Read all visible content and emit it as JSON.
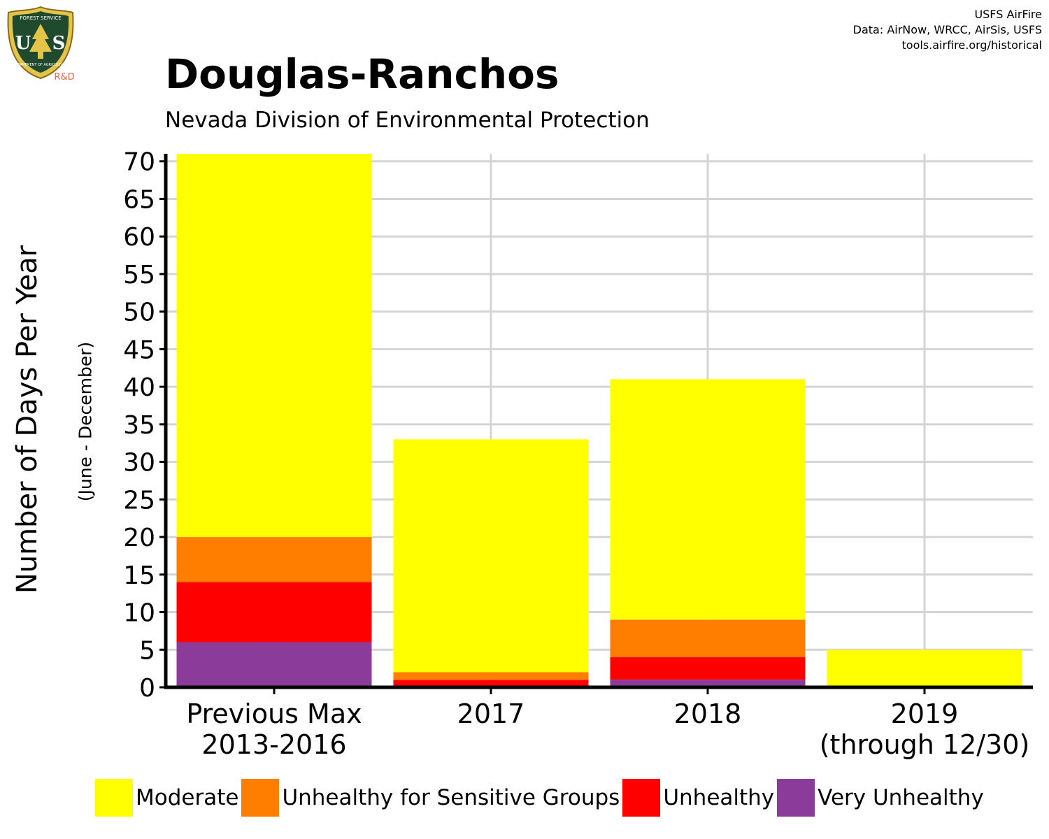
{
  "header": {
    "title": "Douglas-Ranchos",
    "subtitle": "Nevada Division of Environmental Protection",
    "credits": [
      "USFS AirFire",
      "Data: AirNow, WRCC, AirSis, USFS",
      "tools.airfire.org/historical"
    ]
  },
  "logo": {
    "top_text": "FOREST SERVICE",
    "letters": "US",
    "bottom_text": "DEPARTMENT OF AGRICULTURE",
    "tag": "R&D"
  },
  "chart_data": {
    "type": "bar",
    "stacked": true,
    "title": "Douglas-Ranchos",
    "subtitle": "Nevada Division of Environmental Protection",
    "ylabel": "Number of Days Per Year",
    "ylabel_sub": "(June - December)",
    "xlabel": "",
    "ylim": [
      0,
      71
    ],
    "yticks": [
      0,
      5,
      10,
      15,
      20,
      25,
      30,
      35,
      40,
      45,
      50,
      55,
      60,
      65,
      70
    ],
    "grid": true,
    "legend_position": "bottom",
    "categories": [
      [
        "Previous Max",
        "2013-2016"
      ],
      [
        "2017"
      ],
      [
        "2018"
      ],
      [
        "2019",
        "(through 12/30)"
      ]
    ],
    "series": [
      {
        "name": "Very Unhealthy",
        "color": "#8B3C9B",
        "values": [
          6,
          0,
          1,
          0
        ]
      },
      {
        "name": "Unhealthy",
        "color": "#FF0000",
        "values": [
          8,
          1,
          3,
          0
        ]
      },
      {
        "name": "Unhealthy for Sensitive Groups",
        "color": "#FF7E00",
        "values": [
          6,
          1,
          5,
          0
        ]
      },
      {
        "name": "Moderate",
        "color": "#FFFF00",
        "values": [
          51,
          31,
          32,
          5
        ]
      }
    ]
  },
  "legend": [
    {
      "label": "Moderate",
      "color": "#FFFF00"
    },
    {
      "label": "Unhealthy for Sensitive Groups",
      "color": "#FF7E00"
    },
    {
      "label": "Unhealthy",
      "color": "#FF0000"
    },
    {
      "label": "Very Unhealthy",
      "color": "#8B3C9B"
    }
  ]
}
